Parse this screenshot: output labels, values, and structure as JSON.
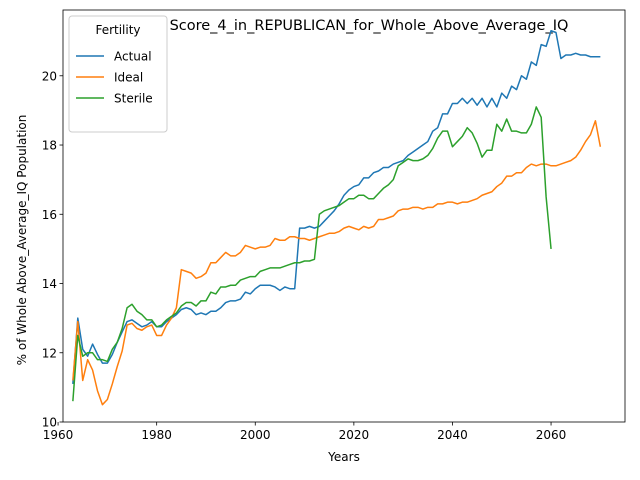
{
  "chart_data": {
    "type": "line",
    "title": "Score_4_in_REPUBLICAN_for_Whole_Above_Average_IQ",
    "xlabel": "Years",
    "ylabel": "% of Whole Above_Average_IQ Population",
    "xlim": [
      1961,
      2075
    ],
    "ylim": [
      10,
      21.9
    ],
    "xticks": [
      1960,
      1980,
      2000,
      2020,
      2040,
      2060
    ],
    "yticks": [
      10,
      12,
      14,
      16,
      18,
      20
    ],
    "grid": false,
    "legend": {
      "title": "Fertility",
      "placement": "top-left"
    },
    "series": [
      {
        "name": "Actual",
        "color": "#1f77b4",
        "points": [
          [
            1963,
            11.1
          ],
          [
            1964,
            13.0
          ],
          [
            1965,
            12.1
          ],
          [
            1966,
            11.9
          ],
          [
            1967,
            12.25
          ],
          [
            1968,
            11.95
          ],
          [
            1969,
            11.7
          ],
          [
            1970,
            11.7
          ],
          [
            1971,
            11.95
          ],
          [
            1972,
            12.3
          ],
          [
            1973,
            12.6
          ],
          [
            1974,
            12.9
          ],
          [
            1975,
            12.95
          ],
          [
            1976,
            12.85
          ],
          [
            1977,
            12.75
          ],
          [
            1978,
            12.8
          ],
          [
            1979,
            12.9
          ],
          [
            1980,
            12.75
          ],
          [
            1981,
            12.75
          ],
          [
            1982,
            12.9
          ],
          [
            1983,
            13.0
          ],
          [
            1984,
            13.1
          ],
          [
            1985,
            13.25
          ],
          [
            1986,
            13.3
          ],
          [
            1987,
            13.25
          ],
          [
            1988,
            13.1
          ],
          [
            1989,
            13.15
          ],
          [
            1990,
            13.1
          ],
          [
            1991,
            13.2
          ],
          [
            1992,
            13.2
          ],
          [
            1993,
            13.3
          ],
          [
            1994,
            13.45
          ],
          [
            1995,
            13.5
          ],
          [
            1996,
            13.5
          ],
          [
            1997,
            13.55
          ],
          [
            1998,
            13.75
          ],
          [
            1999,
            13.7
          ],
          [
            2000,
            13.85
          ],
          [
            2001,
            13.95
          ],
          [
            2002,
            13.95
          ],
          [
            2003,
            13.95
          ],
          [
            2004,
            13.9
          ],
          [
            2005,
            13.8
          ],
          [
            2006,
            13.9
          ],
          [
            2007,
            13.85
          ],
          [
            2008,
            13.85
          ],
          [
            2009,
            15.6
          ],
          [
            2010,
            15.6
          ],
          [
            2011,
            15.65
          ],
          [
            2012,
            15.6
          ],
          [
            2013,
            15.65
          ],
          [
            2014,
            15.8
          ],
          [
            2015,
            15.95
          ],
          [
            2016,
            16.1
          ],
          [
            2017,
            16.3
          ],
          [
            2018,
            16.55
          ],
          [
            2019,
            16.7
          ],
          [
            2020,
            16.8
          ],
          [
            2021,
            16.85
          ],
          [
            2022,
            17.05
          ],
          [
            2023,
            17.05
          ],
          [
            2024,
            17.2
          ],
          [
            2025,
            17.25
          ],
          [
            2026,
            17.35
          ],
          [
            2027,
            17.35
          ],
          [
            2028,
            17.45
          ],
          [
            2029,
            17.5
          ],
          [
            2030,
            17.55
          ],
          [
            2031,
            17.7
          ],
          [
            2032,
            17.8
          ],
          [
            2033,
            17.9
          ],
          [
            2034,
            18.0
          ],
          [
            2035,
            18.1
          ],
          [
            2036,
            18.4
          ],
          [
            2037,
            18.5
          ],
          [
            2038,
            18.9
          ],
          [
            2039,
            18.9
          ],
          [
            2040,
            19.2
          ],
          [
            2041,
            19.2
          ],
          [
            2042,
            19.35
          ],
          [
            2043,
            19.2
          ],
          [
            2044,
            19.35
          ],
          [
            2045,
            19.15
          ],
          [
            2046,
            19.35
          ],
          [
            2047,
            19.1
          ],
          [
            2048,
            19.35
          ],
          [
            2049,
            19.1
          ],
          [
            2050,
            19.5
          ],
          [
            2051,
            19.35
          ],
          [
            2052,
            19.7
          ],
          [
            2053,
            19.6
          ],
          [
            2054,
            20.0
          ],
          [
            2055,
            19.9
          ],
          [
            2056,
            20.4
          ],
          [
            2057,
            20.3
          ],
          [
            2058,
            20.9
          ],
          [
            2059,
            20.85
          ],
          [
            2060,
            21.3
          ],
          [
            2061,
            21.25
          ],
          [
            2062,
            20.5
          ],
          [
            2063,
            20.6
          ],
          [
            2064,
            20.6
          ],
          [
            2065,
            20.65
          ],
          [
            2066,
            20.6
          ],
          [
            2067,
            20.6
          ],
          [
            2068,
            20.55
          ],
          [
            2069,
            20.55
          ],
          [
            2070,
            20.55
          ]
        ]
      },
      {
        "name": "Ideal",
        "color": "#ff7f0e",
        "points": [
          [
            1963,
            11.2
          ],
          [
            1964,
            12.9
          ],
          [
            1965,
            11.2
          ],
          [
            1966,
            11.8
          ],
          [
            1967,
            11.5
          ],
          [
            1968,
            10.9
          ],
          [
            1969,
            10.5
          ],
          [
            1970,
            10.65
          ],
          [
            1971,
            11.1
          ],
          [
            1972,
            11.6
          ],
          [
            1973,
            12.05
          ],
          [
            1974,
            12.8
          ],
          [
            1975,
            12.85
          ],
          [
            1976,
            12.7
          ],
          [
            1977,
            12.65
          ],
          [
            1978,
            12.75
          ],
          [
            1979,
            12.8
          ],
          [
            1980,
            12.5
          ],
          [
            1981,
            12.5
          ],
          [
            1982,
            12.8
          ],
          [
            1983,
            13.0
          ],
          [
            1984,
            13.3
          ],
          [
            1985,
            14.4
          ],
          [
            1986,
            14.35
          ],
          [
            1987,
            14.3
          ],
          [
            1988,
            14.15
          ],
          [
            1989,
            14.2
          ],
          [
            1990,
            14.3
          ],
          [
            1991,
            14.6
          ],
          [
            1992,
            14.6
          ],
          [
            1993,
            14.75
          ],
          [
            1994,
            14.9
          ],
          [
            1995,
            14.8
          ],
          [
            1996,
            14.8
          ],
          [
            1997,
            14.9
          ],
          [
            1998,
            15.1
          ],
          [
            1999,
            15.05
          ],
          [
            2000,
            15.0
          ],
          [
            2001,
            15.05
          ],
          [
            2002,
            15.05
          ],
          [
            2003,
            15.1
          ],
          [
            2004,
            15.3
          ],
          [
            2005,
            15.25
          ],
          [
            2006,
            15.25
          ],
          [
            2007,
            15.35
          ],
          [
            2008,
            15.35
          ],
          [
            2009,
            15.3
          ],
          [
            2010,
            15.3
          ],
          [
            2011,
            15.25
          ],
          [
            2012,
            15.3
          ],
          [
            2013,
            15.35
          ],
          [
            2014,
            15.4
          ],
          [
            2015,
            15.45
          ],
          [
            2016,
            15.45
          ],
          [
            2017,
            15.5
          ],
          [
            2018,
            15.6
          ],
          [
            2019,
            15.65
          ],
          [
            2020,
            15.6
          ],
          [
            2021,
            15.55
          ],
          [
            2022,
            15.65
          ],
          [
            2023,
            15.6
          ],
          [
            2024,
            15.65
          ],
          [
            2025,
            15.85
          ],
          [
            2026,
            15.85
          ],
          [
            2027,
            15.9
          ],
          [
            2028,
            15.95
          ],
          [
            2029,
            16.1
          ],
          [
            2030,
            16.15
          ],
          [
            2031,
            16.15
          ],
          [
            2032,
            16.2
          ],
          [
            2033,
            16.2
          ],
          [
            2034,
            16.15
          ],
          [
            2035,
            16.2
          ],
          [
            2036,
            16.2
          ],
          [
            2037,
            16.3
          ],
          [
            2038,
            16.3
          ],
          [
            2039,
            16.35
          ],
          [
            2040,
            16.35
          ],
          [
            2041,
            16.3
          ],
          [
            2042,
            16.35
          ],
          [
            2043,
            16.35
          ],
          [
            2044,
            16.4
          ],
          [
            2045,
            16.45
          ],
          [
            2046,
            16.55
          ],
          [
            2047,
            16.6
          ],
          [
            2048,
            16.65
          ],
          [
            2049,
            16.8
          ],
          [
            2050,
            16.9
          ],
          [
            2051,
            17.1
          ],
          [
            2052,
            17.1
          ],
          [
            2053,
            17.2
          ],
          [
            2054,
            17.2
          ],
          [
            2055,
            17.35
          ],
          [
            2056,
            17.45
          ],
          [
            2057,
            17.4
          ],
          [
            2058,
            17.45
          ],
          [
            2059,
            17.45
          ],
          [
            2060,
            17.4
          ],
          [
            2061,
            17.4
          ],
          [
            2062,
            17.45
          ],
          [
            2063,
            17.5
          ],
          [
            2064,
            17.55
          ],
          [
            2065,
            17.65
          ],
          [
            2066,
            17.85
          ],
          [
            2067,
            18.1
          ],
          [
            2068,
            18.3
          ],
          [
            2069,
            18.7
          ],
          [
            2070,
            17.95
          ]
        ]
      },
      {
        "name": "Sterile",
        "color": "#2ca02c",
        "points": [
          [
            1963,
            10.6
          ],
          [
            1964,
            12.5
          ],
          [
            1965,
            11.9
          ],
          [
            1966,
            12.0
          ],
          [
            1967,
            12.0
          ],
          [
            1968,
            11.8
          ],
          [
            1969,
            11.8
          ],
          [
            1970,
            11.75
          ],
          [
            1971,
            12.1
          ],
          [
            1972,
            12.3
          ],
          [
            1973,
            12.7
          ],
          [
            1974,
            13.3
          ],
          [
            1975,
            13.4
          ],
          [
            1976,
            13.2
          ],
          [
            1977,
            13.1
          ],
          [
            1978,
            12.95
          ],
          [
            1979,
            12.95
          ],
          [
            1980,
            12.75
          ],
          [
            1981,
            12.8
          ],
          [
            1982,
            12.95
          ],
          [
            1983,
            13.05
          ],
          [
            1984,
            13.15
          ],
          [
            1985,
            13.35
          ],
          [
            1986,
            13.45
          ],
          [
            1987,
            13.45
          ],
          [
            1988,
            13.35
          ],
          [
            1989,
            13.5
          ],
          [
            1990,
            13.5
          ],
          [
            1991,
            13.75
          ],
          [
            1992,
            13.7
          ],
          [
            1993,
            13.9
          ],
          [
            1994,
            13.9
          ],
          [
            1995,
            13.95
          ],
          [
            1996,
            13.95
          ],
          [
            1997,
            14.1
          ],
          [
            1998,
            14.15
          ],
          [
            1999,
            14.2
          ],
          [
            2000,
            14.2
          ],
          [
            2001,
            14.35
          ],
          [
            2002,
            14.4
          ],
          [
            2003,
            14.45
          ],
          [
            2004,
            14.45
          ],
          [
            2005,
            14.45
          ],
          [
            2006,
            14.5
          ],
          [
            2007,
            14.55
          ],
          [
            2008,
            14.6
          ],
          [
            2009,
            14.6
          ],
          [
            2010,
            14.65
          ],
          [
            2011,
            14.65
          ],
          [
            2012,
            14.7
          ],
          [
            2013,
            16.0
          ],
          [
            2014,
            16.1
          ],
          [
            2015,
            16.15
          ],
          [
            2016,
            16.2
          ],
          [
            2017,
            16.25
          ],
          [
            2018,
            16.35
          ],
          [
            2019,
            16.45
          ],
          [
            2020,
            16.45
          ],
          [
            2021,
            16.55
          ],
          [
            2022,
            16.55
          ],
          [
            2023,
            16.45
          ],
          [
            2024,
            16.45
          ],
          [
            2025,
            16.6
          ],
          [
            2026,
            16.75
          ],
          [
            2027,
            16.85
          ],
          [
            2028,
            17.0
          ],
          [
            2029,
            17.4
          ],
          [
            2030,
            17.5
          ],
          [
            2031,
            17.6
          ],
          [
            2032,
            17.55
          ],
          [
            2033,
            17.55
          ],
          [
            2034,
            17.6
          ],
          [
            2035,
            17.7
          ],
          [
            2036,
            17.9
          ],
          [
            2037,
            18.2
          ],
          [
            2038,
            18.4
          ],
          [
            2039,
            18.4
          ],
          [
            2040,
            17.95
          ],
          [
            2041,
            18.1
          ],
          [
            2042,
            18.25
          ],
          [
            2043,
            18.5
          ],
          [
            2044,
            18.35
          ],
          [
            2045,
            18.05
          ],
          [
            2046,
            17.65
          ],
          [
            2047,
            17.85
          ],
          [
            2048,
            17.85
          ],
          [
            2049,
            18.6
          ],
          [
            2050,
            18.4
          ],
          [
            2051,
            18.75
          ],
          [
            2052,
            18.4
          ],
          [
            2053,
            18.4
          ],
          [
            2054,
            18.35
          ],
          [
            2055,
            18.35
          ],
          [
            2056,
            18.6
          ],
          [
            2057,
            19.1
          ],
          [
            2058,
            18.8
          ],
          [
            2059,
            16.5
          ],
          [
            2060,
            15.0
          ]
        ]
      }
    ]
  }
}
